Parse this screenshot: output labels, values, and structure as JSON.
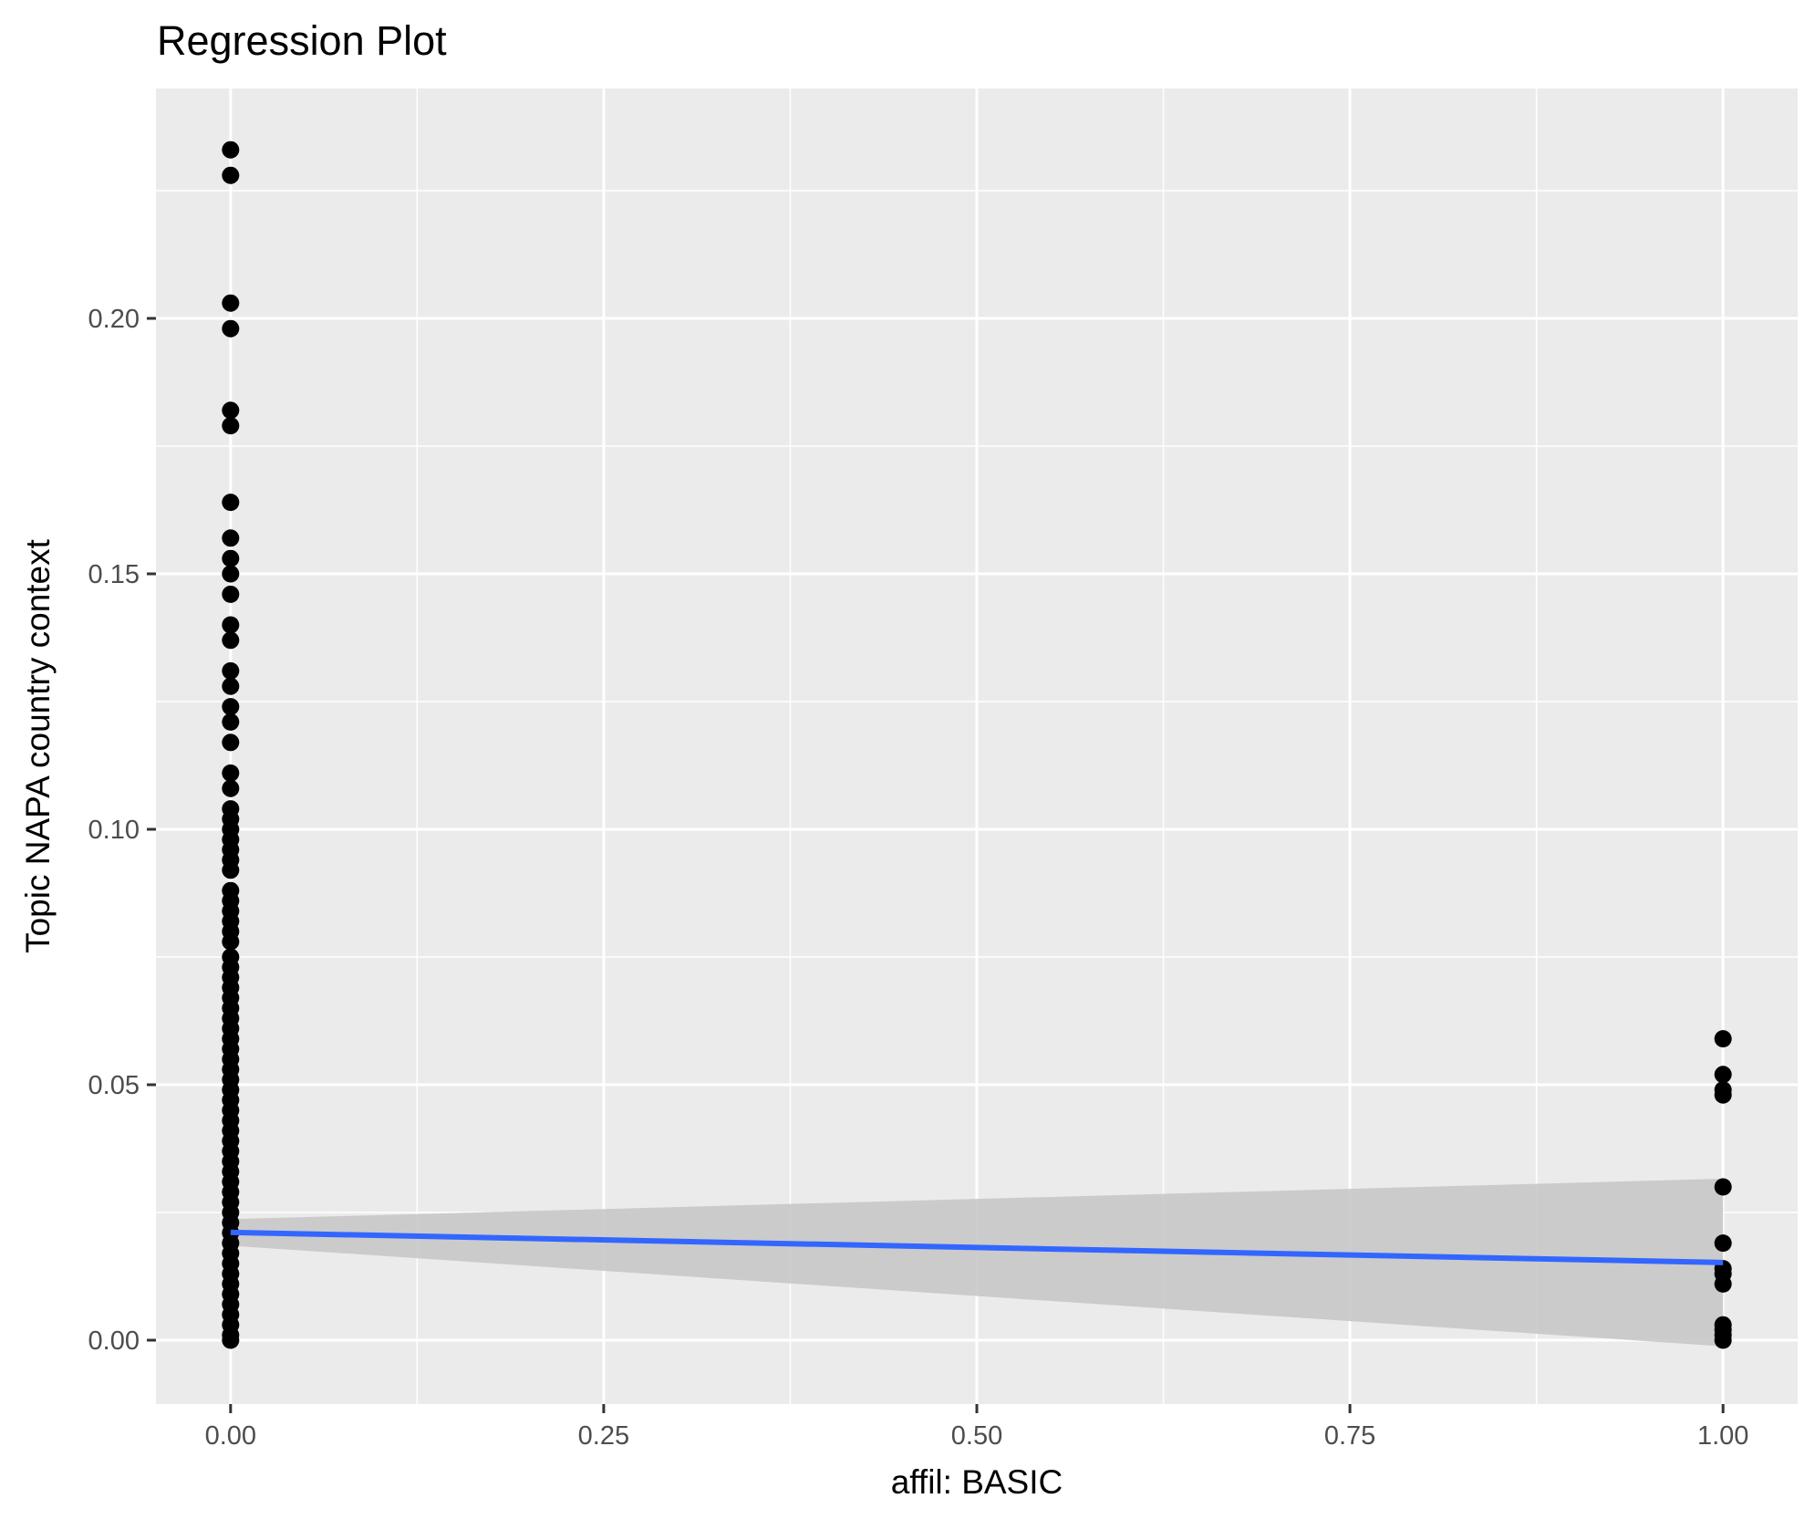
{
  "chart_data": {
    "type": "scatter",
    "title": "Regression Plot",
    "xlabel": "affil: BASIC",
    "ylabel": "Topic NAPA country context",
    "xlim": [
      -0.05,
      1.05
    ],
    "ylim": [
      -0.0125,
      0.245
    ],
    "x_ticks": [
      0.0,
      0.25,
      0.5,
      0.75,
      1.0
    ],
    "x_tick_labels": [
      "0.00",
      "0.25",
      "0.50",
      "0.75",
      "1.00"
    ],
    "y_ticks": [
      0.0,
      0.05,
      0.1,
      0.15,
      0.2
    ],
    "y_tick_labels": [
      "0.00",
      "0.05",
      "0.10",
      "0.15",
      "0.20"
    ],
    "grid": true,
    "legend": "none",
    "colors": {
      "panel": "#ebebeb",
      "grid": "#ffffff",
      "point": "#000000",
      "line": "#3366ff",
      "ribbon": "#c8c8c8"
    },
    "points": {
      "x0": [
        0.233,
        0.228,
        0.203,
        0.198,
        0.182,
        0.179,
        0.164,
        0.157,
        0.153,
        0.15,
        0.146,
        0.14,
        0.137,
        0.131,
        0.128,
        0.124,
        0.121,
        0.117,
        0.111,
        0.108,
        0.104,
        0.102,
        0.1,
        0.098,
        0.096,
        0.094,
        0.092,
        0.088,
        0.086,
        0.084,
        0.082,
        0.08,
        0.078,
        0.075,
        0.073,
        0.071,
        0.069,
        0.067,
        0.065,
        0.063,
        0.061,
        0.059,
        0.057,
        0.055,
        0.053,
        0.051,
        0.049,
        0.047,
        0.045,
        0.043,
        0.041,
        0.039,
        0.037,
        0.035,
        0.033,
        0.031,
        0.029,
        0.027,
        0.025,
        0.023,
        0.021,
        0.019,
        0.017,
        0.015,
        0.013,
        0.011,
        0.009,
        0.007,
        0.005,
        0.003,
        0.001,
        0.0
      ],
      "x1": [
        0.059,
        0.052,
        0.049,
        0.048,
        0.03,
        0.019,
        0.014,
        0.013,
        0.011,
        0.003,
        0.002,
        0.001,
        0.0
      ]
    },
    "regression": {
      "x": [
        0,
        1
      ],
      "y": [
        0.0211,
        0.0152
      ],
      "ci_lower": [
        0.0185,
        -0.0012
      ],
      "ci_upper": [
        0.0237,
        0.0316
      ]
    }
  }
}
